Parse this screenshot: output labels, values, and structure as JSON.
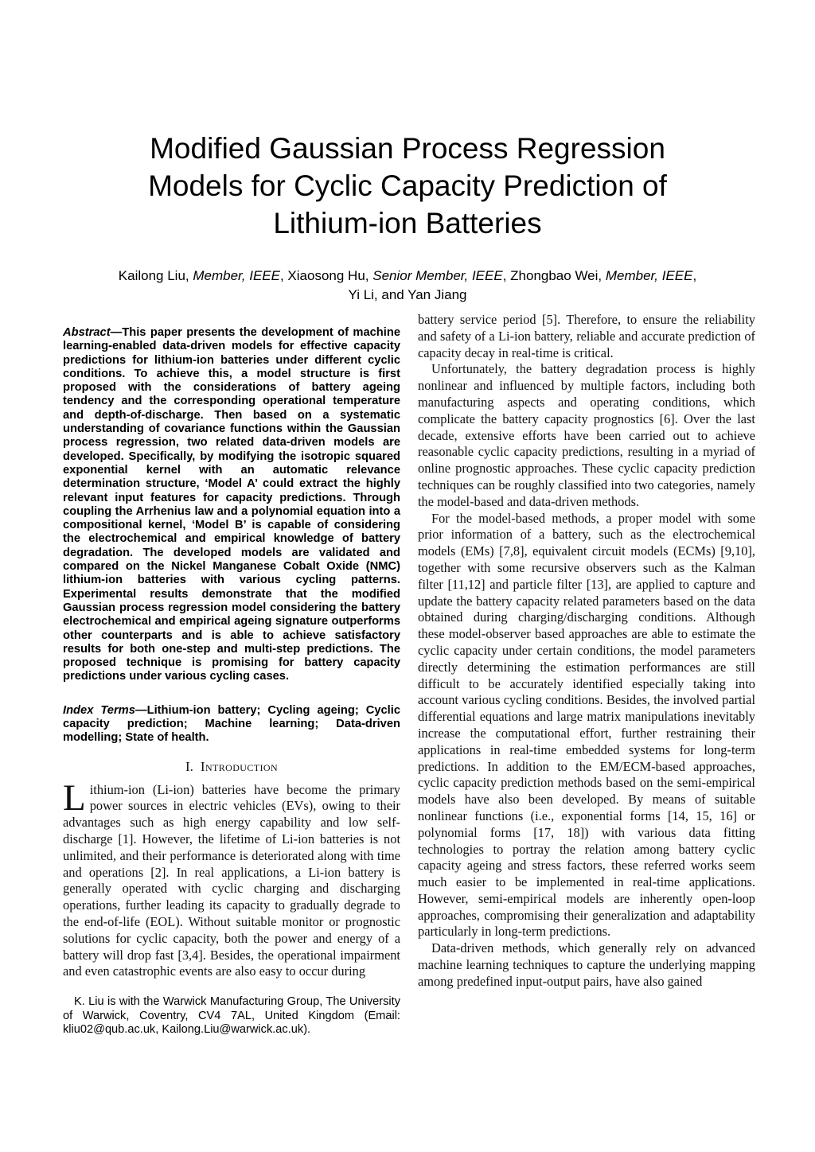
{
  "page": {
    "title": {
      "line1": "Modified Gaussian Process Regression",
      "line2": "Models for Cyclic Capacity Prediction of",
      "line3": "Lithium-ion Batteries"
    },
    "authors": {
      "l1p1": "Kailong Liu, ",
      "l1i1": "Member, IEEE",
      "l1p2": ", Xiaosong Hu, ",
      "l1i2": "Senior Member, IEEE",
      "l1p3": ", Zhongbao Wei, ",
      "l1i3": "Member, IEEE",
      "l1p4": ",",
      "line2": "Yi Li, and Yan Jiang"
    },
    "abstract": {
      "label": "Abstract",
      "text": "—This paper presents the development of machine learning-enabled data-driven models for effective capacity predictions for lithium-ion batteries under different cyclic conditions. To achieve this, a model structure is first proposed with the considerations of battery ageing tendency and the corresponding operational temperature and depth-of-discharge. Then based on a systematic understanding of covariance functions within the Gaussian process regression, two related data-driven models are developed. Specifically, by modifying the isotropic squared exponential kernel with an automatic relevance determination structure, ‘Model A’ could extract the highly relevant input features for capacity predictions. Through coupling the Arrhenius law and a polynomial equation into a compositional kernel, ‘Model B’ is capable of considering the electrochemical and empirical knowledge of battery degradation. The developed models are validated and compared on the Nickel Manganese Cobalt Oxide (NMC) lithium-ion batteries with various cycling patterns. Experimental results demonstrate that the modified Gaussian process regression model considering the battery electrochemical and empirical ageing signature outperforms other counterparts and is able to achieve satisfactory results for both one-step and multi-step predictions. The proposed technique is promising for battery capacity predictions under various cycling cases."
    },
    "index_terms": {
      "label": "Index Terms",
      "text": "—Lithium-ion battery; Cycling ageing; Cyclic capacity prediction; Machine learning; Data-driven modelling; State of health."
    },
    "section_intro": {
      "number": "I.",
      "title": "Introduction"
    },
    "left_column": {
      "intro_dropcap": "L",
      "intro_text": "ithium-ion (Li-ion) batteries have become the primary power sources in electric vehicles (EVs), owing to their advantages such as high energy capability and low self-discharge [1]. However, the lifetime of Li-ion batteries is not unlimited, and their performance is deteriorated along with time and operations [2]. In real applications, a Li-ion battery is generally operated with cyclic charging and discharging operations, further leading its capacity to gradually degrade to the end-of-life (EOL). Without suitable monitor or prognostic solutions for cyclic capacity, both the power and energy of a battery will drop fast [3,4]. Besides, the operational impairment and even catastrophic events are also easy to occur during"
    },
    "right_column": {
      "p1": "battery service period [5]. Therefore, to ensure the reliability and safety of a Li-ion battery, reliable and accurate prediction of capacity decay in real-time is critical.",
      "p2": "Unfortunately, the battery degradation process is highly nonlinear and influenced by multiple factors, including both manufacturing aspects and operating conditions, which complicate the battery capacity prognostics [6]. Over the last decade, extensive efforts have been carried out to achieve reasonable cyclic capacity predictions, resulting in a myriad of online prognostic approaches. These cyclic capacity prediction techniques can be roughly classified into two categories, namely the model-based and data-driven methods.",
      "p3": "For the model-based methods, a proper model with some prior information of a battery, such as the electrochemical models (EMs) [7,8], equivalent circuit models (ECMs) [9,10], together with some recursive observers such as the Kalman filter [11,12] and particle filter [13], are applied to capture and update the battery capacity related parameters based on the data obtained during charging/discharging conditions. Although these model-observer based approaches are able to estimate the cyclic capacity under certain conditions, the model parameters directly determining the estimation performances are still difficult to be accurately identified especially taking into account various cycling conditions. Besides, the involved partial differential equations and large matrix manipulations inevitably increase the computational effort, further restraining their applications in real-time embedded systems for long-term predictions. In addition to the EM/ECM-based approaches, cyclic capacity prediction methods based on the semi-empirical models have also been developed. By means of suitable nonlinear functions (i.e., exponential forms [14, 15, 16] or polynomial forms [17, 18]) with various data fitting technologies to portray the relation among battery cyclic capacity ageing and stress factors, these referred works seem much easier to be implemented in real-time applications. However, semi-empirical models are inherently open-loop approaches, compromising their generalization and adaptability particularly in long-term predictions.",
      "p4": "Data-driven methods, which generally rely on advanced machine learning techniques to capture the underlying mapping among predefined input-output pairs, have also gained"
    },
    "footnote": "K. Liu is with the Warwick Manufacturing Group, The University of Warwick, Coventry, CV4 7AL, United Kingdom (Email: kliu02@qub.ac.uk, Kailong.Liu@warwick.ac.uk)."
  }
}
